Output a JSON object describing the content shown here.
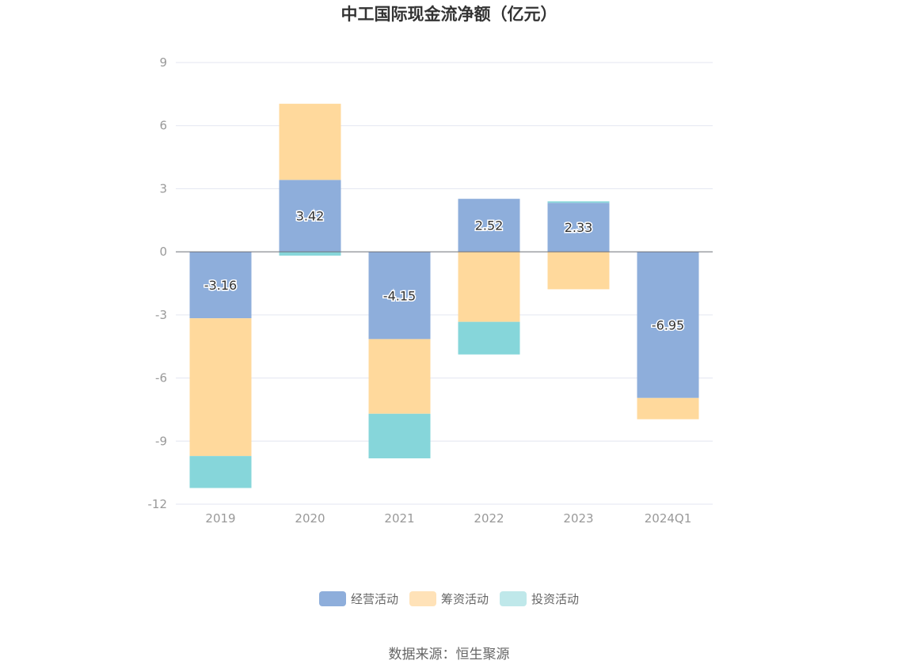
{
  "chart_data": {
    "type": "bar",
    "stacked": true,
    "title": "中工国际现金流净额（亿元）",
    "categories": [
      "2019",
      "2020",
      "2021",
      "2022",
      "2023",
      "2024Q1"
    ],
    "series": [
      {
        "name": "经营活动",
        "color": "#8eaedb",
        "values": [
          -3.16,
          3.42,
          -4.15,
          2.52,
          2.33,
          -6.95
        ],
        "labels": [
          "-3.16",
          "3.42",
          "-4.15",
          "2.52",
          "2.33",
          "-6.95"
        ]
      },
      {
        "name": "筹资活动",
        "color": "#ffd99c",
        "values": [
          -6.55,
          3.62,
          -3.55,
          -3.33,
          -1.78,
          -1.01
        ]
      },
      {
        "name": "投资活动",
        "color": "#86d6da",
        "values": [
          -1.52,
          -0.18,
          -2.12,
          -1.55,
          0.07,
          0
        ]
      }
    ],
    "yticks": [
      9,
      6,
      3,
      0,
      -3,
      -6,
      -9,
      -12
    ],
    "ylim": [
      -12,
      9
    ],
    "legend_position": "bottom"
  },
  "legend": [
    {
      "name": "经营活动",
      "color": "#8eaedb"
    },
    {
      "name": "筹资活动",
      "color": "#ffe2b8"
    },
    {
      "name": "投资活动",
      "color": "#bfe8ea"
    }
  ],
  "source": "数据来源：恒生聚源"
}
